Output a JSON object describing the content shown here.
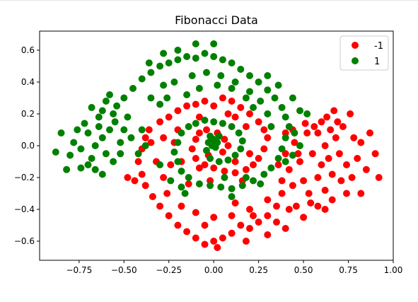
{
  "chart_data": {
    "type": "scatter",
    "title": "Fibonacci Data",
    "xlabel": "",
    "ylabel": "",
    "xlim": [
      -0.97,
      1.0
    ],
    "ylim": [
      -0.72,
      0.72
    ],
    "xticks": [
      -0.75,
      -0.5,
      -0.25,
      0.0,
      0.25,
      0.5,
      0.75,
      1.0
    ],
    "xtick_labels": [
      "−0.75",
      "−0.50",
      "−0.25",
      "0.00",
      "0.25",
      "0.50",
      "0.75",
      "1.00"
    ],
    "yticks": [
      0.6,
      0.4,
      0.2,
      0.0,
      -0.2,
      -0.4,
      -0.6
    ],
    "ytick_labels": [
      "0.6",
      "0.4",
      "0.2",
      "0.0",
      "−0.2",
      "−0.4",
      "−0.6"
    ],
    "grid": false,
    "legend_position": "top-right",
    "series": [
      {
        "name": "-1",
        "color": "#ff0000",
        "points": [
          [
            0.62,
            0.0
          ],
          [
            0.55,
            -0.05
          ],
          [
            0.68,
            0.05
          ],
          [
            0.6,
            -0.12
          ],
          [
            0.7,
            -0.05
          ],
          [
            0.52,
            0.08
          ],
          [
            0.65,
            0.1
          ],
          [
            0.58,
            -0.2
          ],
          [
            0.48,
            -0.1
          ],
          [
            0.72,
            0.12
          ],
          [
            0.45,
            0.02
          ],
          [
            0.66,
            -0.18
          ],
          [
            0.56,
            0.12
          ],
          [
            0.74,
            -0.12
          ],
          [
            0.5,
            -0.22
          ],
          [
            0.62,
            -0.28
          ],
          [
            0.42,
            -0.15
          ],
          [
            0.78,
            0.05
          ],
          [
            0.4,
            0.08
          ],
          [
            0.69,
            0.15
          ],
          [
            0.53,
            -0.3
          ],
          [
            0.6,
            0.15
          ],
          [
            0.8,
            -0.08
          ],
          [
            0.44,
            -0.25
          ],
          [
            0.58,
            0.08
          ],
          [
            0.64,
            -0.08
          ],
          [
            0.51,
            0.14
          ],
          [
            0.71,
            -0.22
          ],
          [
            0.47,
            -0.05
          ],
          [
            0.63,
            0.18
          ],
          [
            0.82,
            0.02
          ],
          [
            0.77,
            -0.2
          ],
          [
            0.85,
            -0.15
          ],
          [
            0.9,
            -0.05
          ],
          [
            0.92,
            -0.2
          ],
          [
            0.38,
            -0.3
          ],
          [
            0.35,
            -0.38
          ],
          [
            0.46,
            -0.38
          ],
          [
            0.3,
            -0.44
          ],
          [
            0.25,
            -0.48
          ],
          [
            0.2,
            -0.52
          ],
          [
            0.15,
            -0.5
          ],
          [
            0.1,
            -0.55
          ],
          [
            0.05,
            -0.58
          ],
          [
            0.0,
            -0.6
          ],
          [
            -0.05,
            -0.62
          ],
          [
            0.02,
            -0.64
          ],
          [
            0.3,
            -0.56
          ],
          [
            0.4,
            -0.52
          ],
          [
            0.5,
            -0.45
          ],
          [
            -0.1,
            -0.58
          ],
          [
            -0.15,
            -0.54
          ],
          [
            -0.2,
            -0.5
          ],
          [
            -0.25,
            -0.44
          ],
          [
            -0.3,
            -0.38
          ],
          [
            -0.34,
            -0.32
          ],
          [
            -0.38,
            -0.25
          ],
          [
            -0.4,
            -0.18
          ],
          [
            -0.42,
            -0.1
          ],
          [
            -0.4,
            -0.02
          ],
          [
            -0.38,
            0.05
          ],
          [
            -0.36,
            0.1
          ],
          [
            -0.3,
            0.15
          ],
          [
            -0.25,
            0.18
          ],
          [
            -0.2,
            0.22
          ],
          [
            -0.15,
            0.25
          ],
          [
            -0.1,
            0.26
          ],
          [
            -0.05,
            0.28
          ],
          [
            0.0,
            0.25
          ],
          [
            0.05,
            0.3
          ],
          [
            0.1,
            0.28
          ],
          [
            0.15,
            0.24
          ],
          [
            0.2,
            0.2
          ],
          [
            0.25,
            0.15
          ],
          [
            0.28,
            0.1
          ],
          [
            0.3,
            0.05
          ],
          [
            0.28,
            -0.02
          ],
          [
            0.25,
            -0.08
          ],
          [
            0.22,
            -0.12
          ],
          [
            0.18,
            -0.15
          ],
          [
            0.12,
            -0.17
          ],
          [
            0.06,
            -0.16
          ],
          [
            0.0,
            -0.14
          ],
          [
            -0.05,
            -0.12
          ],
          [
            -0.1,
            -0.08
          ],
          [
            -0.12,
            -0.02
          ],
          [
            -0.1,
            0.04
          ],
          [
            -0.08,
            0.08
          ],
          [
            -0.04,
            0.1
          ],
          [
            0.02,
            0.08
          ],
          [
            0.06,
            0.04
          ],
          [
            0.08,
            0.0
          ],
          [
            0.05,
            -0.04
          ],
          [
            -0.03,
            -0.06
          ],
          [
            0.12,
            -0.1
          ],
          [
            -0.08,
            -0.14
          ],
          [
            -0.18,
            -0.1
          ],
          [
            -0.22,
            0.02
          ],
          [
            -0.2,
            0.1
          ],
          [
            -0.28,
            -0.2
          ],
          [
            -0.26,
            -0.3
          ],
          [
            -0.18,
            -0.38
          ],
          [
            -0.1,
            -0.42
          ],
          [
            0.0,
            -0.45
          ],
          [
            0.1,
            -0.44
          ],
          [
            0.2,
            -0.4
          ],
          [
            0.3,
            -0.34
          ],
          [
            0.38,
            -0.22
          ],
          [
            0.12,
            -0.36
          ],
          [
            -0.05,
            -0.5
          ],
          [
            0.18,
            -0.6
          ],
          [
            0.22,
            -0.44
          ],
          [
            0.35,
            -0.48
          ],
          [
            0.42,
            -0.4
          ],
          [
            -0.32,
            -0.1
          ],
          [
            -0.35,
            0.02
          ],
          [
            -0.44,
            -0.22
          ],
          [
            -0.48,
            -0.2
          ],
          [
            0.54,
            -0.36
          ],
          [
            0.44,
            0.1
          ],
          [
            0.76,
            0.2
          ],
          [
            0.67,
            0.22
          ],
          [
            0.58,
            -0.38
          ],
          [
            0.62,
            -0.4
          ],
          [
            0.82,
            -0.3
          ],
          [
            0.87,
            0.08
          ],
          [
            0.74,
            -0.3
          ],
          [
            0.36,
            -0.12
          ],
          [
            0.4,
            -0.05
          ],
          [
            0.66,
            -0.34
          ],
          [
            0.12,
            0.18
          ],
          [
            0.18,
            0.12
          ],
          [
            0.2,
            -0.05
          ],
          [
            0.16,
            -0.22
          ],
          [
            -0.02,
            -0.22
          ],
          [
            -0.14,
            -0.24
          ],
          [
            -0.24,
            -0.12
          ],
          [
            -0.28,
            0.05
          ],
          [
            0.08,
            0.2
          ],
          [
            -0.08,
            0.18
          ]
        ]
      },
      {
        "name": "1",
        "color": "#008000",
        "points": [
          [
            -0.62,
            0.05
          ],
          [
            -0.58,
            0.1
          ],
          [
            -0.66,
            0.0
          ],
          [
            -0.6,
            -0.05
          ],
          [
            -0.55,
            0.15
          ],
          [
            -0.7,
            0.08
          ],
          [
            -0.64,
            0.18
          ],
          [
            -0.52,
            0.02
          ],
          [
            -0.68,
            -0.08
          ],
          [
            -0.72,
            0.14
          ],
          [
            -0.56,
            -0.1
          ],
          [
            -0.62,
            0.22
          ],
          [
            -0.5,
            0.1
          ],
          [
            -0.74,
            -0.02
          ],
          [
            -0.6,
            0.28
          ],
          [
            -0.66,
            -0.15
          ],
          [
            -0.54,
            0.25
          ],
          [
            -0.76,
            0.1
          ],
          [
            -0.48,
            0.18
          ],
          [
            -0.7,
            -0.12
          ],
          [
            -0.58,
            0.32
          ],
          [
            -0.64,
            0.12
          ],
          [
            -0.52,
            -0.05
          ],
          [
            -0.78,
            0.02
          ],
          [
            -0.46,
            0.05
          ],
          [
            -0.62,
            -0.18
          ],
          [
            -0.56,
            0.2
          ],
          [
            -0.68,
            0.24
          ],
          [
            -0.8,
            -0.06
          ],
          [
            -0.88,
            -0.04
          ],
          [
            -0.85,
            0.08
          ],
          [
            -0.82,
            -0.15
          ],
          [
            -0.74,
            -0.14
          ],
          [
            -0.5,
            0.3
          ],
          [
            -0.45,
            0.36
          ],
          [
            -0.4,
            0.42
          ],
          [
            -0.35,
            0.46
          ],
          [
            -0.3,
            0.5
          ],
          [
            -0.25,
            0.52
          ],
          [
            -0.2,
            0.54
          ],
          [
            -0.15,
            0.56
          ],
          [
            -0.1,
            0.55
          ],
          [
            -0.05,
            0.58
          ],
          [
            0.0,
            0.56
          ],
          [
            0.05,
            0.54
          ],
          [
            0.1,
            0.52
          ],
          [
            0.15,
            0.48
          ],
          [
            0.2,
            0.44
          ],
          [
            0.25,
            0.4
          ],
          [
            0.3,
            0.35
          ],
          [
            0.34,
            0.3
          ],
          [
            0.38,
            0.24
          ],
          [
            0.4,
            0.18
          ],
          [
            0.42,
            0.12
          ],
          [
            0.4,
            0.05
          ],
          [
            0.38,
            -0.02
          ],
          [
            0.36,
            -0.08
          ],
          [
            0.32,
            -0.14
          ],
          [
            0.28,
            -0.18
          ],
          [
            0.22,
            -0.22
          ],
          [
            0.16,
            -0.25
          ],
          [
            0.1,
            -0.27
          ],
          [
            0.04,
            -0.26
          ],
          [
            -0.02,
            -0.25
          ],
          [
            -0.08,
            -0.24
          ],
          [
            -0.14,
            -0.2
          ],
          [
            -0.18,
            -0.16
          ],
          [
            -0.2,
            -0.1
          ],
          [
            -0.22,
            -0.04
          ],
          [
            -0.2,
            0.02
          ],
          [
            -0.18,
            0.08
          ],
          [
            -0.14,
            0.12
          ],
          [
            -0.1,
            0.14
          ],
          [
            -0.05,
            0.16
          ],
          [
            0.0,
            0.15
          ],
          [
            0.05,
            0.14
          ],
          [
            0.1,
            0.12
          ],
          [
            0.14,
            0.08
          ],
          [
            0.16,
            0.03
          ],
          [
            0.15,
            -0.02
          ],
          [
            0.12,
            -0.06
          ],
          [
            0.08,
            -0.09
          ],
          [
            0.03,
            -0.1
          ],
          [
            -0.02,
            -0.08
          ],
          [
            -0.04,
            -0.03
          ],
          [
            -0.03,
            0.02
          ],
          [
            0.0,
            0.04
          ],
          [
            0.02,
            0.02
          ],
          [
            0.01,
            -0.01
          ],
          [
            -0.01,
            0.0
          ],
          [
            0.03,
            0.06
          ],
          [
            -0.02,
            0.06
          ],
          [
            -0.35,
            0.3
          ],
          [
            -0.28,
            0.38
          ],
          [
            -0.22,
            0.4
          ],
          [
            -0.12,
            0.44
          ],
          [
            -0.04,
            0.46
          ],
          [
            0.04,
            0.44
          ],
          [
            0.12,
            0.4
          ],
          [
            0.2,
            0.34
          ],
          [
            0.26,
            0.28
          ],
          [
            0.3,
            0.2
          ],
          [
            0.32,
            0.12
          ],
          [
            0.45,
            0.08
          ],
          [
            0.48,
            0.0
          ],
          [
            0.44,
            -0.06
          ],
          [
            0.4,
            -0.1
          ],
          [
            -0.1,
            0.64
          ],
          [
            0.0,
            0.64
          ],
          [
            -0.2,
            0.6
          ],
          [
            -0.28,
            0.58
          ],
          [
            -0.36,
            0.52
          ],
          [
            0.3,
            0.44
          ],
          [
            0.36,
            0.38
          ],
          [
            0.44,
            0.3
          ],
          [
            0.48,
            0.22
          ],
          [
            0.52,
            0.2
          ],
          [
            -0.3,
            0.26
          ],
          [
            -0.26,
            0.3
          ],
          [
            -0.15,
            0.32
          ],
          [
            -0.08,
            0.36
          ],
          [
            0.02,
            0.38
          ],
          [
            0.1,
            0.36
          ],
          [
            0.18,
            0.3
          ],
          [
            0.22,
            0.24
          ],
          [
            -0.4,
            0.1
          ],
          [
            -0.38,
            0.0
          ],
          [
            -0.42,
            -0.05
          ],
          [
            -0.24,
            -0.22
          ],
          [
            -0.18,
            -0.26
          ],
          [
            0.06,
            -0.2
          ],
          [
            0.18,
            -0.2
          ],
          [
            0.26,
            -0.24
          ],
          [
            -0.3,
            -0.12
          ],
          [
            -0.16,
            -0.3
          ],
          [
            0.1,
            -0.32
          ]
        ]
      }
    ]
  }
}
